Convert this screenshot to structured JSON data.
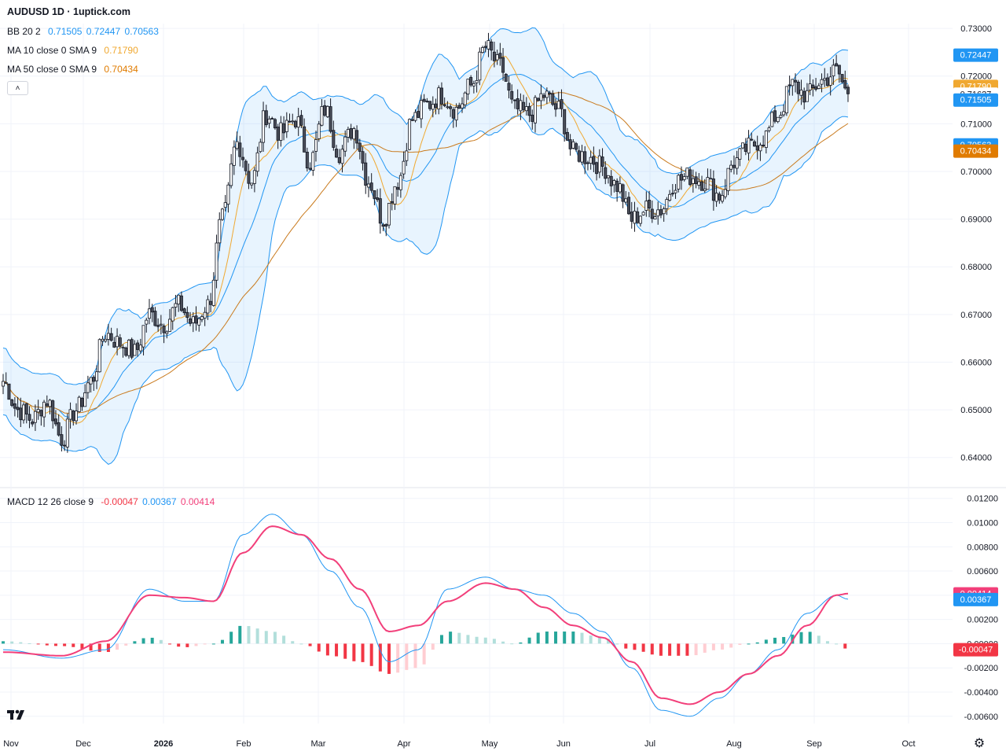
{
  "title": "AUDUSD 1D · 1uptick.com",
  "indicators": {
    "bb": {
      "label": "BB 20 2",
      "values": [
        "0.71505",
        "0.72447",
        "0.70563"
      ],
      "color": "#2196f3"
    },
    "ma10": {
      "label": "MA 10 close 0 SMA 9",
      "value": "0.71790",
      "color": "#f0a830"
    },
    "ma50": {
      "label": "MA 50 close 0 SMA 9",
      "value": "0.70434",
      "color": "#e07b00"
    },
    "macd": {
      "label": "MACD 12 26 close 9",
      "values": [
        "-0.00047",
        "0.00367",
        "0.00414"
      ],
      "colors": [
        "#f23645",
        "#2196f3",
        "#f23645"
      ]
    }
  },
  "icons": {
    "collapse": "chevron-up-icon",
    "logo": "tradingview-logo",
    "settings": "gear-icon"
  },
  "chart_data": [
    {
      "type": "candlestick",
      "symbol": "AUDUSD",
      "timeframe": "1D",
      "ylim": [
        0.635,
        0.731
      ],
      "y_ticks": [
        "0.73000",
        "0.72000",
        "0.71000",
        "0.70000",
        "0.69000",
        "0.68000",
        "0.67000",
        "0.66000",
        "0.65000",
        "0.64000"
      ],
      "x_ticks": [
        "Nov",
        "Dec",
        "2026",
        "Feb",
        "Mar",
        "Apr",
        "May",
        "Jun",
        "Jul",
        "Aug",
        "Sep",
        "Oct"
      ],
      "price_tags": [
        {
          "value": 0.72447,
          "label": "0.72447",
          "color": "#2196f3"
        },
        {
          "value": 0.7179,
          "label": "0.71790",
          "color": "#f0a830"
        },
        {
          "value": 0.71627,
          "label": "0.71627",
          "color": "#ffffff"
        },
        {
          "value": 0.71505,
          "label": "0.71505",
          "color": "#2196f3"
        },
        {
          "value": 0.70563,
          "label": "0.70563",
          "color": "#2196f3"
        },
        {
          "value": 0.70434,
          "label": "0.70434",
          "color": "#e07b00"
        }
      ],
      "close_anchors": [
        [
          0,
          0.656
        ],
        [
          5,
          0.65
        ],
        [
          10,
          0.648
        ],
        [
          15,
          0.652
        ],
        [
          20,
          0.644
        ],
        [
          25,
          0.65
        ],
        [
          30,
          0.656
        ],
        [
          35,
          0.666
        ],
        [
          40,
          0.664
        ],
        [
          45,
          0.662
        ],
        [
          50,
          0.67
        ],
        [
          55,
          0.668
        ],
        [
          60,
          0.672
        ],
        [
          65,
          0.668
        ],
        [
          70,
          0.672
        ],
        [
          75,
          0.69
        ],
        [
          80,
          0.706
        ],
        [
          85,
          0.698
        ],
        [
          90,
          0.712
        ],
        [
          95,
          0.708
        ],
        [
          100,
          0.711
        ],
        [
          105,
          0.702
        ],
        [
          110,
          0.713
        ],
        [
          115,
          0.704
        ],
        [
          120,
          0.709
        ],
        [
          125,
          0.698
        ],
        [
          130,
          0.69
        ],
        [
          135,
          0.698
        ],
        [
          140,
          0.711
        ],
        [
          145,
          0.714
        ],
        [
          150,
          0.716
        ],
        [
          155,
          0.713
        ],
        [
          160,
          0.718
        ],
        [
          165,
          0.726
        ],
        [
          170,
          0.722
        ],
        [
          175,
          0.713
        ],
        [
          180,
          0.712
        ],
        [
          185,
          0.716
        ],
        [
          190,
          0.713
        ],
        [
          195,
          0.704
        ],
        [
          200,
          0.703
        ],
        [
          205,
          0.701
        ],
        [
          210,
          0.697
        ],
        [
          215,
          0.69
        ],
        [
          220,
          0.692
        ],
        [
          225,
          0.692
        ],
        [
          230,
          0.698
        ],
        [
          235,
          0.699
        ],
        [
          240,
          0.698
        ],
        [
          245,
          0.695
        ],
        [
          250,
          0.702
        ],
        [
          255,
          0.705
        ],
        [
          260,
          0.707
        ],
        [
          265,
          0.712
        ],
        [
          270,
          0.718
        ],
        [
          275,
          0.716
        ],
        [
          280,
          0.719
        ],
        [
          285,
          0.721
        ],
        [
          289,
          0.7163
        ]
      ]
    },
    {
      "type": "macd",
      "ylim": [
        -0.0066,
        0.0125
      ],
      "y_ticks": [
        "0.01200",
        "0.01000",
        "0.00800",
        "0.00600",
        "0.00400",
        "0.00200",
        "0.00000",
        "-0.00200",
        "-0.00400",
        "-0.00600"
      ],
      "value_tags": [
        {
          "value": 0.00414,
          "label": "0.00414",
          "color": "#f23f7a"
        },
        {
          "value": 0.00367,
          "label": "0.00367",
          "color": "#2196f3"
        },
        {
          "value": -0.00047,
          "label": "-0.00047",
          "color": "#f23645"
        }
      ],
      "series": [
        {
          "type": "line",
          "color": "#2196f3",
          "points": [
            [
              0,
              -0.0005
            ],
            [
              20,
              -0.0012
            ],
            [
              35,
              -0.0005
            ],
            [
              50,
              0.0045
            ],
            [
              62,
              0.0035
            ],
            [
              72,
              0.0035
            ],
            [
              82,
              0.009
            ],
            [
              92,
              0.0107
            ],
            [
              102,
              0.009
            ],
            [
              112,
              0.006
            ],
            [
              122,
              0.003
            ],
            [
              132,
              -0.0015
            ],
            [
              142,
              -0.0005
            ],
            [
              152,
              0.0045
            ],
            [
              165,
              0.0055
            ],
            [
              175,
              0.0045
            ],
            [
              185,
              0.004
            ],
            [
              195,
              0.0025
            ],
            [
              205,
              0.001
            ],
            [
              215,
              -0.002
            ],
            [
              225,
              -0.0055
            ],
            [
              235,
              -0.006
            ],
            [
              245,
              -0.0045
            ],
            [
              255,
              -0.0025
            ],
            [
              265,
              -0.0005
            ],
            [
              275,
              0.0025
            ],
            [
              285,
              0.004
            ],
            [
              289,
              0.00367
            ]
          ]
        },
        {
          "type": "line",
          "color": "#f23f7a",
          "points": [
            [
              0,
              -0.0007
            ],
            [
              20,
              -0.001
            ],
            [
              35,
              0.0002
            ],
            [
              50,
              0.004
            ],
            [
              62,
              0.0038
            ],
            [
              72,
              0.0035
            ],
            [
              82,
              0.0075
            ],
            [
              92,
              0.0097
            ],
            [
              102,
              0.009
            ],
            [
              112,
              0.007
            ],
            [
              122,
              0.0045
            ],
            [
              132,
              0.001
            ],
            [
              142,
              0.0015
            ],
            [
              152,
              0.0035
            ],
            [
              165,
              0.005
            ],
            [
              175,
              0.0045
            ],
            [
              185,
              0.003
            ],
            [
              195,
              0.0015
            ],
            [
              205,
              0.0005
            ],
            [
              215,
              -0.0015
            ],
            [
              225,
              -0.0045
            ],
            [
              235,
              -0.005
            ],
            [
              245,
              -0.004
            ],
            [
              255,
              -0.0025
            ],
            [
              265,
              -0.001
            ],
            [
              275,
              0.0015
            ],
            [
              285,
              0.004
            ],
            [
              289,
              0.00414
            ]
          ]
        }
      ]
    }
  ]
}
